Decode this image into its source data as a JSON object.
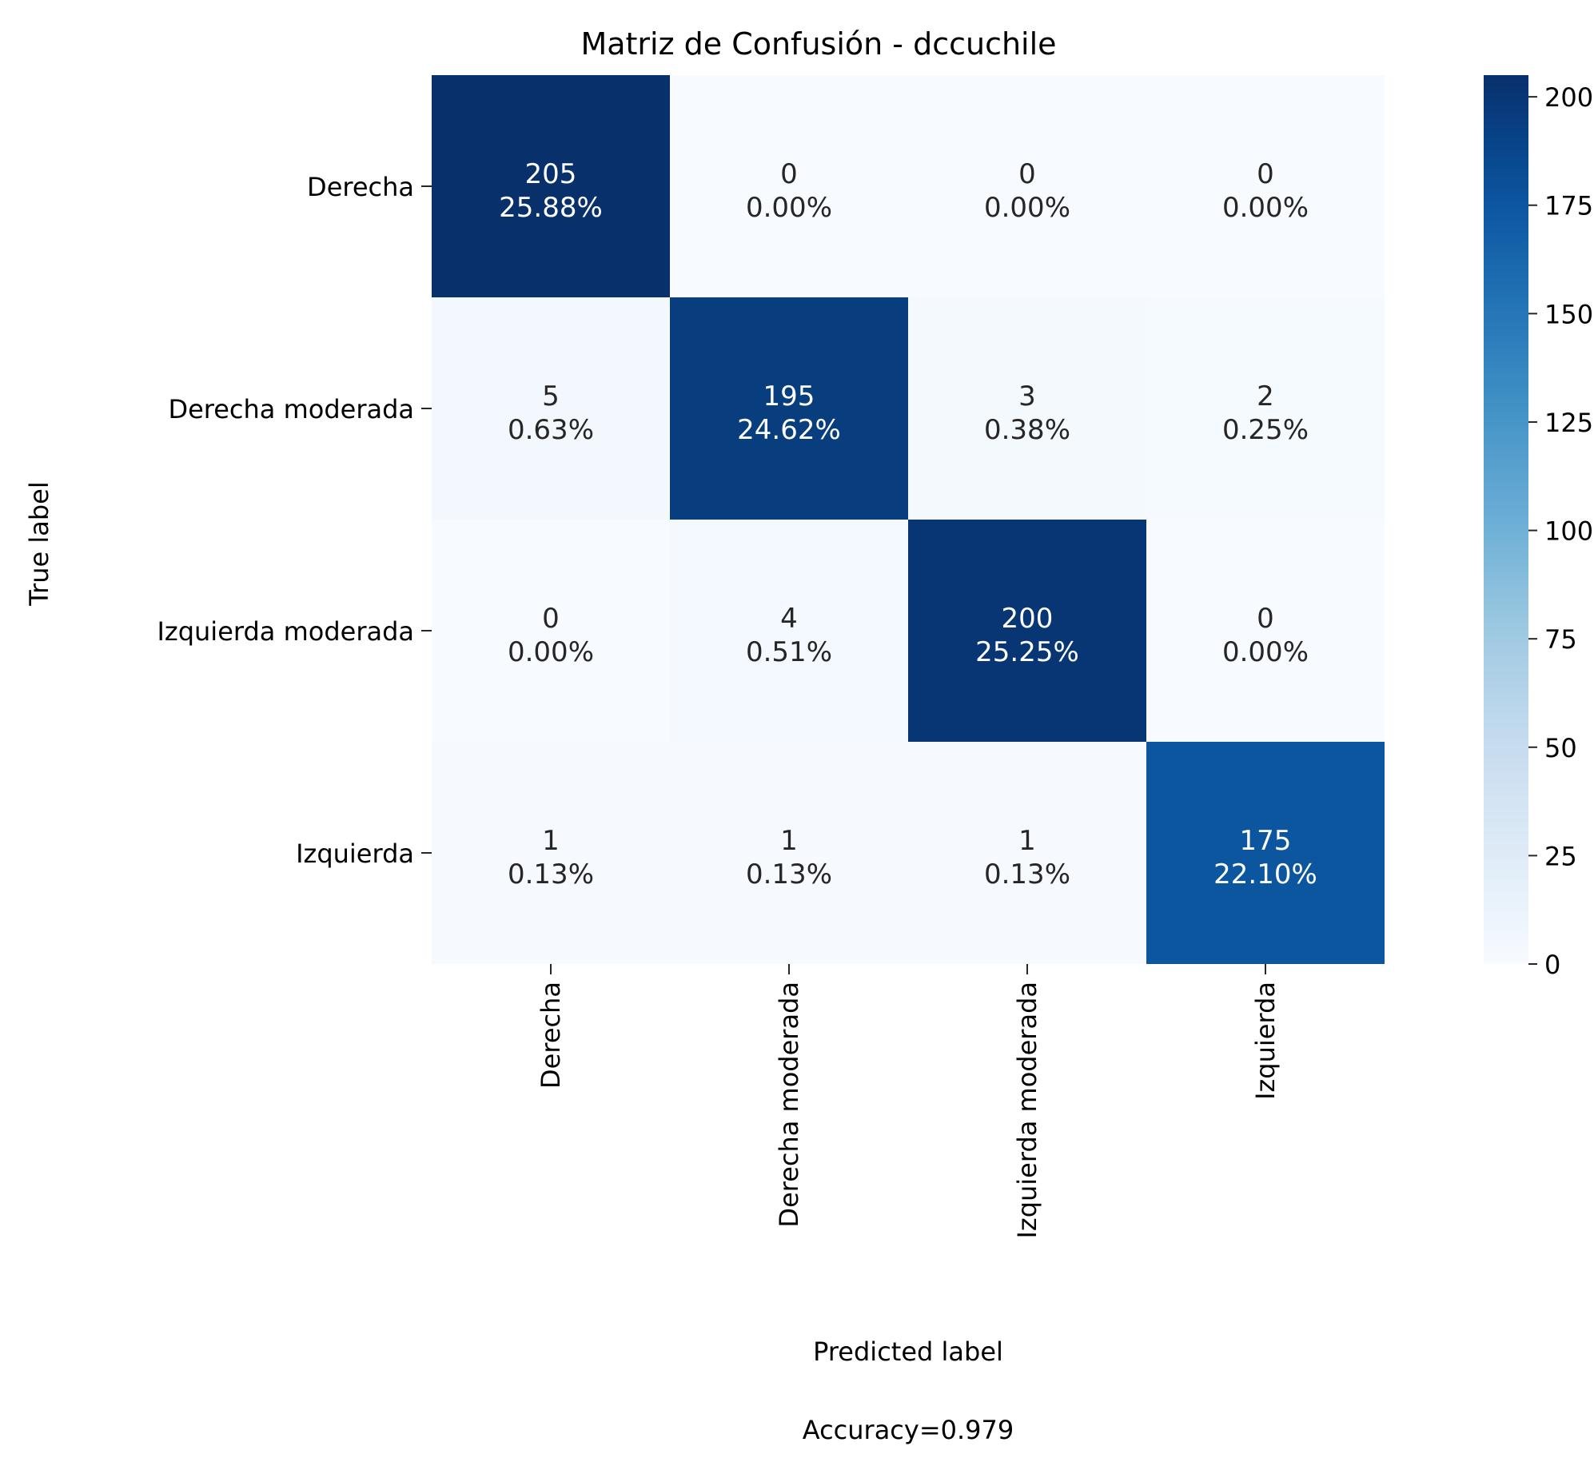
{
  "chart_data": {
    "type": "heatmap",
    "title": "Matriz de Confusión - dccuchile",
    "xlabel": "Predicted label",
    "ylabel": "True label",
    "footer": "Accuracy=0.979",
    "row_labels": [
      "Derecha",
      "Derecha moderada",
      "Izquierda moderada",
      "Izquierda"
    ],
    "col_labels": [
      "Derecha",
      "Derecha moderada",
      "Izquierda moderada",
      "Izquierda"
    ],
    "values": [
      [
        205,
        0,
        0,
        0
      ],
      [
        5,
        195,
        3,
        2
      ],
      [
        0,
        4,
        200,
        0
      ],
      [
        1,
        1,
        1,
        175
      ]
    ],
    "percents": [
      [
        "25.88%",
        "0.00%",
        "0.00%",
        "0.00%"
      ],
      [
        "0.63%",
        "24.62%",
        "0.38%",
        "0.25%"
      ],
      [
        "0.00%",
        "0.51%",
        "25.25%",
        "0.00%"
      ],
      [
        "0.13%",
        "0.13%",
        "0.13%",
        "22.10%"
      ]
    ],
    "colormap": "Blues",
    "colorbar": {
      "range": [
        0,
        205
      ],
      "ticks": [
        0,
        25,
        50,
        75,
        100,
        125,
        150,
        175,
        200
      ]
    },
    "grid": false
  }
}
